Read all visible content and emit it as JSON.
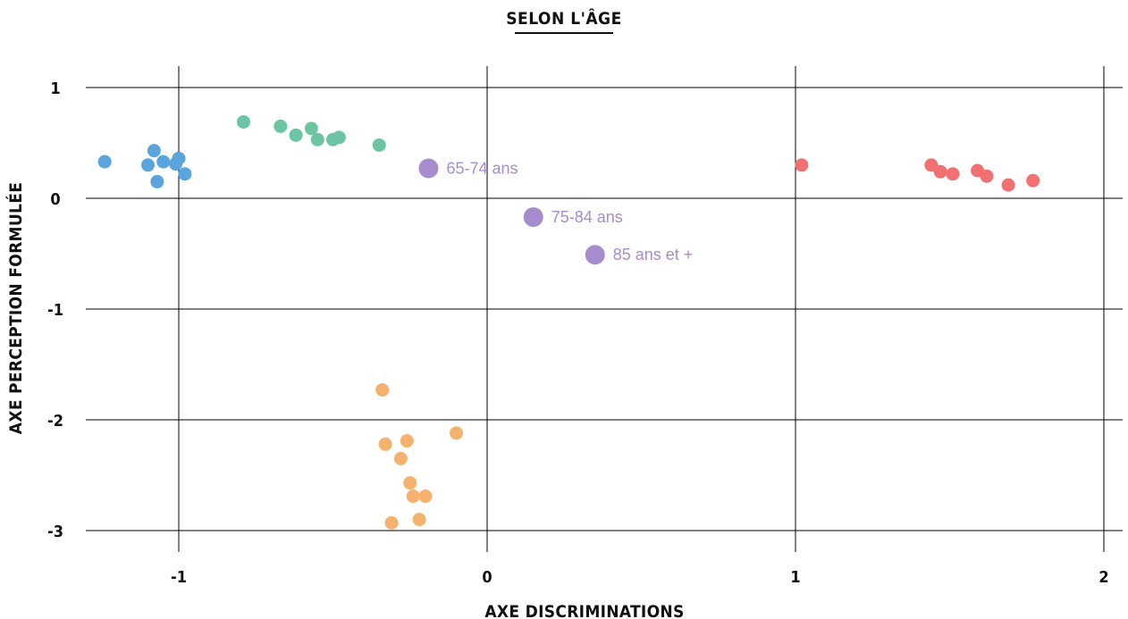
{
  "chart_data": {
    "type": "scatter",
    "title": "SELON L'ÂGE",
    "xlabel": "AXE DISCRIMINATIONS",
    "ylabel": "AXE PERCEPTION FORMULÉE",
    "xlim": [
      -1.3,
      2.05
    ],
    "ylim": [
      -3.1,
      1.2
    ],
    "x_ticks": [
      -1,
      0,
      1,
      2
    ],
    "x_tick_labels": [
      "-1",
      "0",
      "1",
      "2"
    ],
    "y_ticks": [
      1,
      0,
      -1,
      -2,
      -3
    ],
    "y_tick_labels": [
      "1",
      "0",
      "-1",
      "-2",
      "-3"
    ],
    "grid": true,
    "legend": "none",
    "series": [
      {
        "color": "#5aa5dd",
        "points": [
          {
            "x": -1.24,
            "y": 0.33
          },
          {
            "x": -1.08,
            "y": 0.43
          },
          {
            "x": -1.05,
            "y": 0.33
          },
          {
            "x": -1.1,
            "y": 0.3
          },
          {
            "x": -1.0,
            "y": 0.36
          },
          {
            "x": -1.01,
            "y": 0.31
          },
          {
            "x": -0.98,
            "y": 0.22
          },
          {
            "x": -1.07,
            "y": 0.15
          }
        ]
      },
      {
        "color": "#6cc4a3",
        "points": [
          {
            "x": -0.79,
            "y": 0.69
          },
          {
            "x": -0.67,
            "y": 0.65
          },
          {
            "x": -0.62,
            "y": 0.57
          },
          {
            "x": -0.57,
            "y": 0.63
          },
          {
            "x": -0.55,
            "y": 0.53
          },
          {
            "x": -0.5,
            "y": 0.53
          },
          {
            "x": -0.48,
            "y": 0.55
          },
          {
            "x": -0.35,
            "y": 0.48
          }
        ]
      },
      {
        "color": "#a68ccd",
        "points": [
          {
            "x": -0.19,
            "y": 0.27,
            "label": "65-74 ans"
          },
          {
            "x": 0.15,
            "y": -0.17,
            "label": "75-84 ans"
          },
          {
            "x": 0.35,
            "y": -0.51,
            "label": "85 ans et +"
          }
        ]
      },
      {
        "color": "#f17173",
        "points": [
          {
            "x": 1.02,
            "y": 0.3
          },
          {
            "x": 1.44,
            "y": 0.3
          },
          {
            "x": 1.47,
            "y": 0.24
          },
          {
            "x": 1.51,
            "y": 0.22
          },
          {
            "x": 1.59,
            "y": 0.25
          },
          {
            "x": 1.62,
            "y": 0.2
          },
          {
            "x": 1.69,
            "y": 0.12
          },
          {
            "x": 1.77,
            "y": 0.16
          }
        ]
      },
      {
        "color": "#f5b26e",
        "points": [
          {
            "x": -0.34,
            "y": -1.73
          },
          {
            "x": -0.33,
            "y": -2.22
          },
          {
            "x": -0.26,
            "y": -2.19
          },
          {
            "x": -0.1,
            "y": -2.12
          },
          {
            "x": -0.28,
            "y": -2.35
          },
          {
            "x": -0.25,
            "y": -2.57
          },
          {
            "x": -0.24,
            "y": -2.69
          },
          {
            "x": -0.2,
            "y": -2.69
          },
          {
            "x": -0.22,
            "y": -2.9
          },
          {
            "x": -0.31,
            "y": -2.93
          }
        ]
      }
    ]
  }
}
